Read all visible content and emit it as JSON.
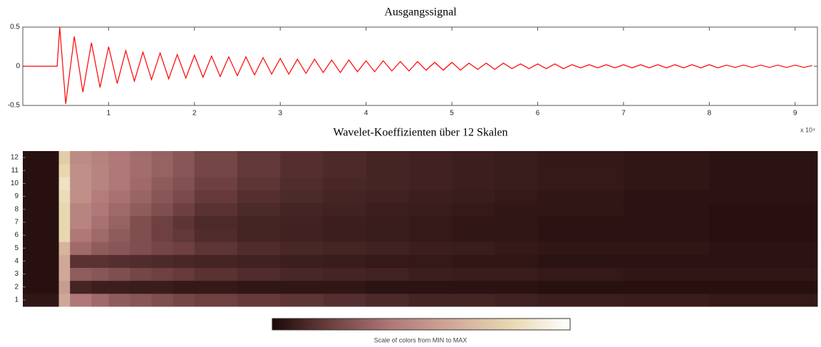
{
  "chart_data": [
    {
      "type": "line",
      "title": "Ausgangssignal",
      "x_multiplier": "x 10⁴",
      "color": "#ff0000",
      "xlim": [
        0,
        92600
      ],
      "ylim": [
        -0.5,
        0.5
      ],
      "xticks": [
        {
          "value": 10000,
          "label": "1"
        },
        {
          "value": 20000,
          "label": "2"
        },
        {
          "value": 30000,
          "label": "3"
        },
        {
          "value": 40000,
          "label": "4"
        },
        {
          "value": 50000,
          "label": "5"
        },
        {
          "value": 60000,
          "label": "6"
        },
        {
          "value": 70000,
          "label": "7"
        },
        {
          "value": 80000,
          "label": "8"
        },
        {
          "value": 90000,
          "label": "9"
        }
      ],
      "yticks": [
        -0.5,
        0,
        0.5
      ],
      "grid": false,
      "x": [
        0,
        4000,
        4300,
        5000,
        6000,
        7000,
        8000,
        9000,
        10000,
        11000,
        12000,
        13000,
        14000,
        15000,
        16000,
        17000,
        18000,
        19000,
        20000,
        21000,
        22000,
        23000,
        24000,
        25000,
        26000,
        27000,
        28000,
        29000,
        30000,
        31000,
        32000,
        33000,
        34000,
        35000,
        36000,
        37000,
        38000,
        39000,
        40000,
        41000,
        42000,
        43000,
        44000,
        45000,
        46000,
        47000,
        48000,
        49000,
        50000,
        51000,
        52000,
        53000,
        54000,
        55000,
        56000,
        57000,
        58000,
        59000,
        60000,
        61000,
        62000,
        63000,
        64000,
        65000,
        66000,
        67000,
        68000,
        69000,
        70000,
        71000,
        72000,
        73000,
        74000,
        75000,
        76000,
        77000,
        78000,
        79000,
        80000,
        81000,
        82000,
        83000,
        84000,
        85000,
        86000,
        87000,
        88000,
        89000,
        90000,
        91000,
        92000
      ],
      "values": [
        0,
        0,
        0.5,
        -0.48,
        0.38,
        -0.33,
        0.3,
        -0.27,
        0.25,
        -0.22,
        0.2,
        -0.19,
        0.18,
        -0.17,
        0.17,
        -0.16,
        0.15,
        -0.15,
        0.14,
        -0.14,
        0.13,
        -0.13,
        0.12,
        -0.12,
        0.12,
        -0.11,
        0.11,
        -0.1,
        0.1,
        -0.1,
        0.09,
        -0.09,
        0.09,
        -0.08,
        0.08,
        -0.08,
        0.08,
        -0.07,
        0.07,
        -0.07,
        0.07,
        -0.06,
        0.06,
        -0.06,
        0.06,
        -0.05,
        0.05,
        -0.05,
        0.05,
        -0.05,
        0.04,
        -0.04,
        0.04,
        -0.04,
        0.04,
        -0.03,
        0.03,
        -0.03,
        0.03,
        -0.03,
        0.03,
        -0.03,
        0.02,
        -0.02,
        0.02,
        -0.02,
        0.02,
        -0.02,
        0.02,
        -0.02,
        0.02,
        -0.02,
        0.02,
        -0.02,
        0.02,
        -0.02,
        0.02,
        -0.02,
        0.02,
        -0.02,
        0.015,
        -0.015,
        0.015,
        -0.015,
        0.015,
        -0.015,
        0.015,
        -0.015,
        0.015,
        -0.015,
        0.01
      ]
    },
    {
      "type": "heatmap",
      "title": "Wavelet-Koeffizienten über 12 Skalen",
      "colorbar_label": "Scale of colors from MIN to MAX",
      "colormap": [
        "#1c0808",
        "#6e4040",
        "#b07878",
        "#d0a898",
        "#e8d8b0",
        "#ffffff"
      ],
      "zlim": [
        0,
        1
      ],
      "xlim": [
        0,
        92600
      ],
      "ylim": [
        0.5,
        12.5
      ],
      "yticks": [
        1,
        2,
        3,
        4,
        5,
        6,
        7,
        8,
        9,
        10,
        11,
        12
      ],
      "y": [
        1,
        2,
        3,
        4,
        5,
        6,
        7,
        8,
        9,
        10,
        11,
        12
      ],
      "xbins": [
        0,
        4200,
        5500,
        8000,
        10000,
        12500,
        15000,
        17500,
        20000,
        25000,
        30000,
        35000,
        40000,
        45000,
        50000,
        55000,
        60000,
        70000,
        80000,
        92600
      ],
      "z": [
        [
          0.05,
          0.6,
          0.4,
          0.35,
          0.3,
          0.28,
          0.25,
          0.22,
          0.2,
          0.18,
          0.16,
          0.14,
          0.12,
          0.1,
          0.1,
          0.09,
          0.08,
          0.07,
          0.06
        ],
        [
          0.03,
          0.55,
          0.1,
          0.08,
          0.08,
          0.07,
          0.07,
          0.06,
          0.06,
          0.05,
          0.05,
          0.05,
          0.04,
          0.04,
          0.04,
          0.04,
          0.03,
          0.03,
          0.03
        ],
        [
          0.03,
          0.6,
          0.3,
          0.28,
          0.25,
          0.22,
          0.2,
          0.18,
          0.15,
          0.13,
          0.11,
          0.1,
          0.09,
          0.08,
          0.07,
          0.07,
          0.06,
          0.05,
          0.05
        ],
        [
          0.03,
          0.6,
          0.15,
          0.15,
          0.14,
          0.13,
          0.12,
          0.11,
          0.1,
          0.09,
          0.08,
          0.07,
          0.06,
          0.06,
          0.05,
          0.05,
          0.04,
          0.04,
          0.04
        ],
        [
          0.03,
          0.65,
          0.35,
          0.3,
          0.28,
          0.25,
          0.22,
          0.2,
          0.16,
          0.13,
          0.11,
          0.1,
          0.09,
          0.08,
          0.07,
          0.06,
          0.05,
          0.05,
          0.04
        ],
        [
          0.03,
          0.8,
          0.4,
          0.35,
          0.3,
          0.25,
          0.2,
          0.17,
          0.13,
          0.1,
          0.09,
          0.08,
          0.07,
          0.06,
          0.05,
          0.05,
          0.04,
          0.04,
          0.03
        ],
        [
          0.03,
          0.8,
          0.45,
          0.38,
          0.32,
          0.25,
          0.2,
          0.16,
          0.12,
          0.1,
          0.09,
          0.08,
          0.07,
          0.06,
          0.05,
          0.05,
          0.04,
          0.04,
          0.03
        ],
        [
          0.03,
          0.8,
          0.45,
          0.4,
          0.35,
          0.3,
          0.25,
          0.2,
          0.15,
          0.12,
          0.1,
          0.09,
          0.08,
          0.07,
          0.06,
          0.05,
          0.05,
          0.04,
          0.03
        ],
        [
          0.03,
          0.82,
          0.5,
          0.42,
          0.38,
          0.33,
          0.28,
          0.24,
          0.18,
          0.14,
          0.12,
          0.1,
          0.09,
          0.08,
          0.07,
          0.06,
          0.05,
          0.04,
          0.04
        ],
        [
          0.03,
          0.85,
          0.5,
          0.45,
          0.4,
          0.35,
          0.3,
          0.26,
          0.2,
          0.16,
          0.13,
          0.11,
          0.1,
          0.09,
          0.08,
          0.07,
          0.06,
          0.05,
          0.04
        ],
        [
          0.03,
          0.8,
          0.5,
          0.45,
          0.4,
          0.36,
          0.32,
          0.28,
          0.22,
          0.17,
          0.14,
          0.12,
          0.1,
          0.09,
          0.08,
          0.07,
          0.06,
          0.05,
          0.04
        ],
        [
          0.03,
          0.75,
          0.48,
          0.44,
          0.4,
          0.36,
          0.32,
          0.28,
          0.22,
          0.17,
          0.14,
          0.12,
          0.1,
          0.09,
          0.08,
          0.07,
          0.06,
          0.05,
          0.04
        ]
      ]
    }
  ]
}
